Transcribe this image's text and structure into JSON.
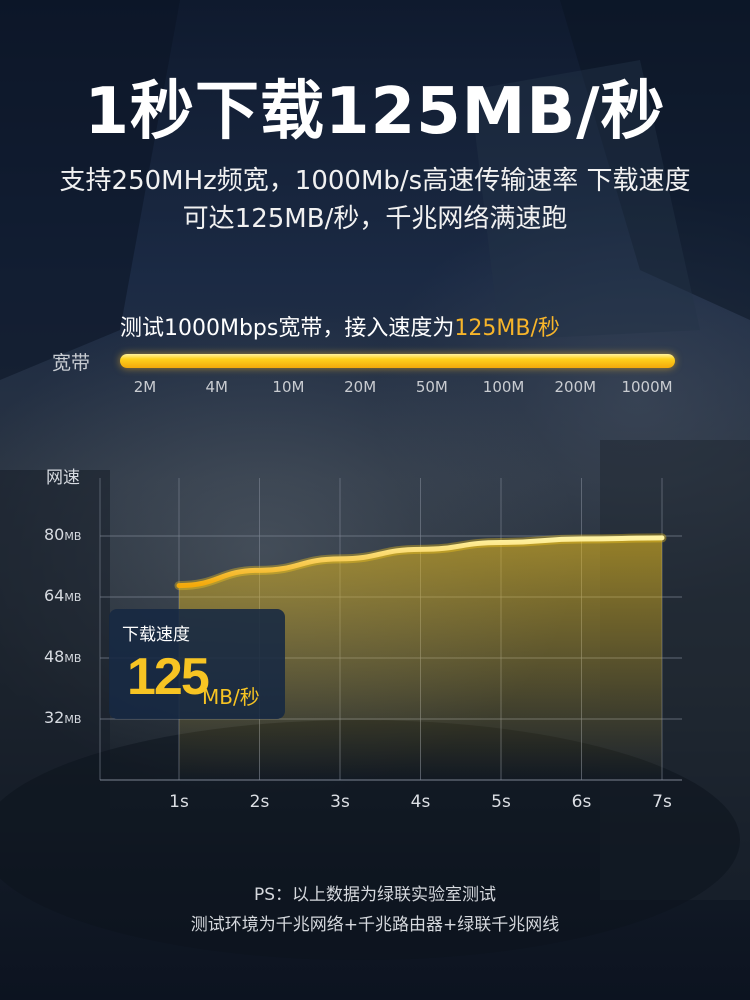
{
  "headline": "1秒下载125MB/秒",
  "subtitle_line1": "支持250MHz频宽，1000Mb/s高速传输速率 下载速度",
  "subtitle_line2": "可达125MB/秒，千兆网络满速跑",
  "bandwidth": {
    "caption_prefix": "测试1000Mbps宽带，接入速度为",
    "caption_highlight": "125MB/秒",
    "label": "宽带",
    "ticks": [
      "2M",
      "4M",
      "10M",
      "20M",
      "50M",
      "100M",
      "200M",
      "1000M"
    ],
    "fill_fraction": 1.0
  },
  "callout": {
    "title": "下载速度",
    "value": "125",
    "unit": "MB/秒"
  },
  "footnote": {
    "line1": "PS：以上数据为绿联实验室测试",
    "line2": "测试环境为千兆网络+千兆路由器+绿联千兆网线"
  },
  "colors": {
    "accent": "#f7b52a",
    "line": "#ffd21e",
    "grid": "#7d8593"
  },
  "chart_data": {
    "type": "area",
    "title": "",
    "xlabel": "",
    "ylabel": "网速",
    "y_unit": "MB",
    "x": [
      "1s",
      "2s",
      "3s",
      "4s",
      "5s",
      "6s",
      "7s"
    ],
    "y_ticks": [
      32,
      48,
      64,
      80
    ],
    "y_tick_labels": [
      {
        "value": "32",
        "unit": "MB"
      },
      {
        "value": "48",
        "unit": "MB"
      },
      {
        "value": "64",
        "unit": "MB"
      },
      {
        "value": "80",
        "unit": "MB"
      }
    ],
    "ylim": [
      16,
      96
    ],
    "series": [
      {
        "values": [
          67.0,
          71.0,
          74.0,
          76.5,
          78.3,
          79.2,
          79.5
        ]
      }
    ],
    "grid": true
  }
}
